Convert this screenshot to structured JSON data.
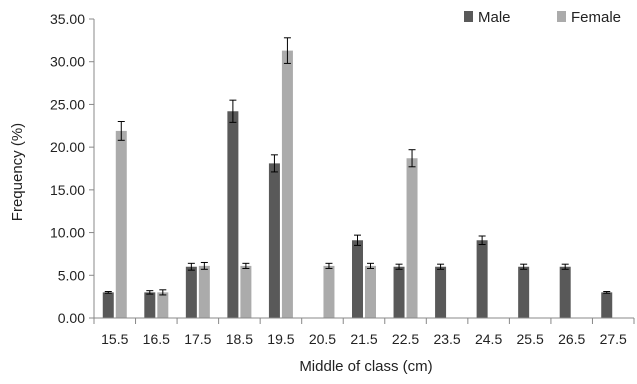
{
  "chart_data": {
    "type": "bar",
    "title": "",
    "xlabel": "Middle of class (cm)",
    "ylabel": "Frequency (%)",
    "ylim": [
      0,
      35
    ],
    "yticks": [
      "0.00",
      "5.00",
      "10.00",
      "15.00",
      "20.00",
      "25.00",
      "30.00",
      "35.00"
    ],
    "categories": [
      "15.5",
      "16.5",
      "17.5",
      "18.5",
      "19.5",
      "20.5",
      "21.5",
      "22.5",
      "23.5",
      "24.5",
      "25.5",
      "26.5",
      "27.5"
    ],
    "series": [
      {
        "name": "Male",
        "color": "#595959",
        "values": [
          3.0,
          3.0,
          6.0,
          24.2,
          18.1,
          0,
          9.1,
          6.0,
          6.0,
          9.1,
          6.0,
          6.0,
          3.0
        ],
        "errors": [
          0.1,
          0.2,
          0.4,
          1.3,
          1.0,
          0,
          0.6,
          0.3,
          0.3,
          0.5,
          0.3,
          0.3,
          0.1
        ]
      },
      {
        "name": "Female",
        "color": "#ababab",
        "values": [
          21.9,
          3.0,
          6.1,
          6.1,
          31.3,
          6.1,
          6.1,
          18.7,
          0,
          0,
          0,
          0,
          0
        ],
        "errors": [
          1.1,
          0.3,
          0.4,
          0.3,
          1.5,
          0.3,
          0.3,
          1.0,
          0,
          0,
          0,
          0,
          0
        ]
      }
    ],
    "legend_position": "top-right",
    "grid": false
  }
}
